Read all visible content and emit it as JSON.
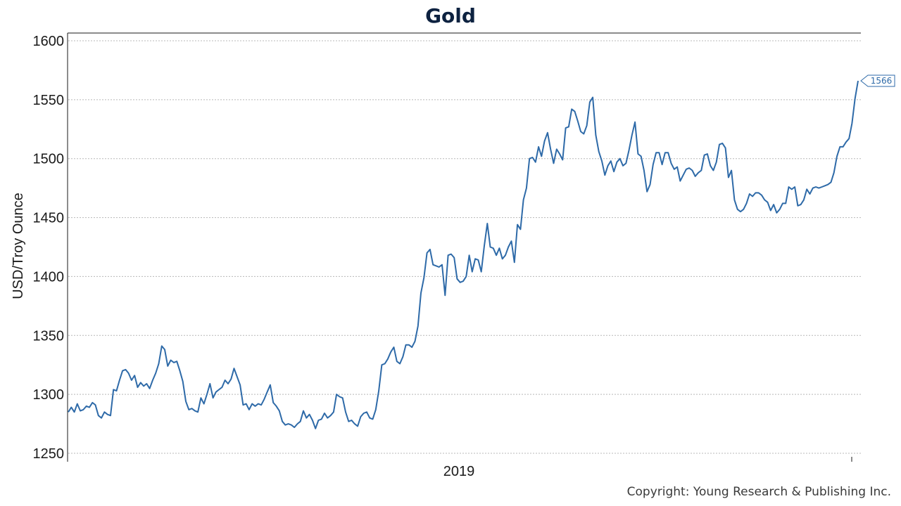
{
  "chart_data": {
    "type": "line",
    "title": "Gold",
    "ylabel": "USD/Troy Ounce",
    "xlabel": "",
    "x_tick_labels": [
      "2019"
    ],
    "y_ticks": [
      1250,
      1300,
      1350,
      1400,
      1450,
      1500,
      1550,
      1600
    ],
    "ylim": [
      1245,
      1607
    ],
    "grid": true,
    "last_value_label": "1566",
    "line_color": "#2e6aa8",
    "series": [
      {
        "values": [
          1285,
          1289,
          1285,
          1292,
          1286,
          1287,
          1290,
          1289,
          1293,
          1291,
          1282,
          1280,
          1285,
          1283,
          1282,
          1304,
          1303,
          1312,
          1320,
          1321,
          1318,
          1312,
          1316,
          1306,
          1310,
          1307,
          1309,
          1305,
          1312,
          1318,
          1326,
          1341,
          1338,
          1324,
          1329,
          1327,
          1328,
          1320,
          1311,
          1294,
          1287,
          1288,
          1286,
          1285,
          1297,
          1292,
          1300,
          1309,
          1297,
          1302,
          1304,
          1306,
          1312,
          1309,
          1313,
          1322,
          1315,
          1308,
          1291,
          1292,
          1287,
          1292,
          1290,
          1292,
          1291,
          1296,
          1302,
          1308,
          1293,
          1290,
          1286,
          1277,
          1274,
          1275,
          1274,
          1272,
          1275,
          1277,
          1286,
          1280,
          1283,
          1278,
          1271,
          1278,
          1279,
          1284,
          1280,
          1282,
          1285,
          1300,
          1298,
          1297,
          1285,
          1277,
          1278,
          1275,
          1273,
          1281,
          1284,
          1285,
          1280,
          1279,
          1287,
          1303,
          1325,
          1326,
          1330,
          1336,
          1340,
          1328,
          1326,
          1332,
          1342,
          1342,
          1340,
          1345,
          1358,
          1386,
          1399,
          1420,
          1423,
          1410,
          1409,
          1408,
          1410,
          1384,
          1418,
          1419,
          1416,
          1398,
          1395,
          1396,
          1400,
          1418,
          1404,
          1415,
          1414,
          1404,
          1426,
          1445,
          1425,
          1424,
          1418,
          1424,
          1415,
          1418,
          1425,
          1430,
          1412,
          1444,
          1440,
          1465,
          1475,
          1500,
          1501,
          1497,
          1510,
          1502,
          1515,
          1522,
          1508,
          1496,
          1508,
          1504,
          1499,
          1526,
          1527,
          1542,
          1540,
          1532,
          1523,
          1521,
          1528,
          1548,
          1552,
          1520,
          1506,
          1498,
          1486,
          1494,
          1498,
          1489,
          1497,
          1500,
          1494,
          1496,
          1507,
          1520,
          1531,
          1504,
          1502,
          1490,
          1472,
          1478,
          1495,
          1505,
          1505,
          1495,
          1505,
          1505,
          1496,
          1491,
          1493,
          1481,
          1486,
          1491,
          1492,
          1490,
          1485,
          1488,
          1490,
          1503,
          1504,
          1494,
          1490,
          1497,
          1512,
          1513,
          1509,
          1484,
          1490,
          1465,
          1457,
          1455,
          1457,
          1462,
          1470,
          1468,
          1471,
          1471,
          1469,
          1465,
          1463,
          1456,
          1461,
          1454,
          1457,
          1462,
          1462,
          1476,
          1474,
          1476,
          1460,
          1461,
          1465,
          1474,
          1470,
          1475,
          1476,
          1475,
          1476,
          1477,
          1478,
          1480,
          1488,
          1502,
          1510,
          1510,
          1514,
          1517,
          1530,
          1551,
          1566
        ]
      }
    ]
  },
  "footer": {
    "copyright": "Copyright: Young Research & Publishing Inc."
  }
}
